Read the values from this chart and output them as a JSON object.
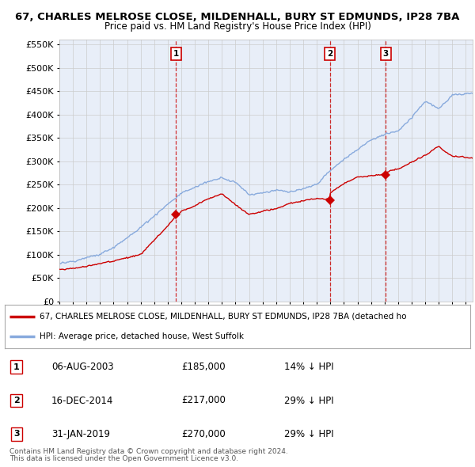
{
  "title1": "67, CHARLES MELROSE CLOSE, MILDENHALL, BURY ST EDMUNDS, IP28 7BA",
  "title2": "Price paid vs. HM Land Registry's House Price Index (HPI)",
  "ytick_values": [
    0,
    50000,
    100000,
    150000,
    200000,
    250000,
    300000,
    350000,
    400000,
    450000,
    500000,
    550000
  ],
  "transactions": [
    {
      "label": "1",
      "date": "06-AUG-2003",
      "price": 185000,
      "pct": "14%",
      "direction": "↓",
      "x_year": 2003.6
    },
    {
      "label": "2",
      "date": "16-DEC-2014",
      "price": 217000,
      "pct": "29%",
      "direction": "↓",
      "x_year": 2014.96
    },
    {
      "label": "3",
      "date": "31-JAN-2019",
      "price": 270000,
      "pct": "29%",
      "direction": "↓",
      "x_year": 2019.08
    }
  ],
  "legend_property_label": "67, CHARLES MELROSE CLOSE, MILDENHALL, BURY ST EDMUNDS, IP28 7BA (detached ho",
  "legend_hpi_label": "HPI: Average price, detached house, West Suffolk",
  "footer1": "Contains HM Land Registry data © Crown copyright and database right 2024.",
  "footer2": "This data is licensed under the Open Government Licence v3.0.",
  "property_color": "#cc0000",
  "hpi_color": "#88aadd",
  "vline_color": "#cc0000",
  "bg_color": "#e8eef8",
  "grid_color": "#cccccc",
  "xmin": 1995,
  "xmax": 2025.5,
  "hpi_anchors_x": [
    1995,
    1996,
    1997,
    1998,
    1999,
    2000,
    2001,
    2002,
    2003,
    2004,
    2005,
    2006,
    2007,
    2008,
    2009,
    2010,
    2011,
    2012,
    2013,
    2014,
    2015,
    2016,
    2017,
    2018,
    2019,
    2020,
    2021,
    2022,
    2023,
    2024,
    2025.5
  ],
  "hpi_anchors_y": [
    78000,
    83000,
    91000,
    100000,
    115000,
    135000,
    158000,
    182000,
    205000,
    228000,
    240000,
    252000,
    265000,
    255000,
    228000,
    232000,
    238000,
    235000,
    242000,
    252000,
    280000,
    305000,
    325000,
    345000,
    360000,
    365000,
    395000,
    430000,
    415000,
    445000,
    450000
  ],
  "prop_anchors_x": [
    1995,
    1997,
    1999,
    2001,
    2003,
    2003.6,
    2004,
    2005,
    2006,
    2007,
    2008,
    2009,
    2010,
    2011,
    2012,
    2013,
    2014,
    2014.96,
    2015,
    2016,
    2017,
    2018,
    2019,
    2019.08,
    2020,
    2021,
    2022,
    2023,
    2024,
    2025.5
  ],
  "prop_anchors_y": [
    68000,
    75000,
    88000,
    102000,
    165000,
    185000,
    195000,
    205000,
    222000,
    232000,
    210000,
    188000,
    195000,
    200000,
    210000,
    215000,
    218000,
    217000,
    230000,
    248000,
    262000,
    265000,
    269000,
    270000,
    278000,
    295000,
    310000,
    330000,
    310000,
    305000
  ]
}
